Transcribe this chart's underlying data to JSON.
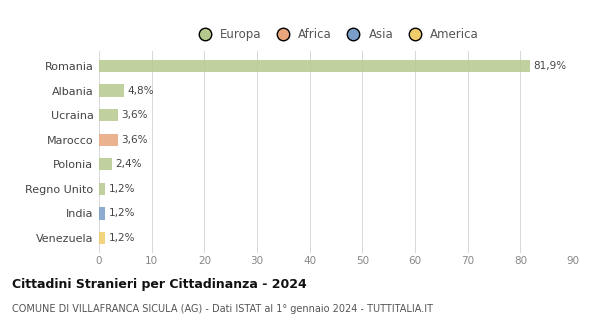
{
  "countries": [
    "Romania",
    "Albania",
    "Ucraina",
    "Marocco",
    "Polonia",
    "Regno Unito",
    "India",
    "Venezuela"
  ],
  "values": [
    81.9,
    4.8,
    3.6,
    3.6,
    2.4,
    1.2,
    1.2,
    1.2
  ],
  "labels": [
    "81,9%",
    "4,8%",
    "3,6%",
    "3,6%",
    "2,4%",
    "1,2%",
    "1,2%",
    "1,2%"
  ],
  "colors": [
    "#b5c98e",
    "#b5c98e",
    "#b5c98e",
    "#e8a57c",
    "#b5c98e",
    "#b5c98e",
    "#7a9ec8",
    "#f0cc6a"
  ],
  "legend_labels": [
    "Europa",
    "Africa",
    "Asia",
    "America"
  ],
  "legend_colors": [
    "#b5c98e",
    "#e8a57c",
    "#7a9ec8",
    "#f0cc6a"
  ],
  "title": "Cittadini Stranieri per Cittadinanza - 2024",
  "subtitle": "COMUNE DI VILLAFRANCA SICULA (AG) - Dati ISTAT al 1° gennaio 2024 - TUTTITALIA.IT",
  "xlim": [
    0,
    90
  ],
  "xticks": [
    0,
    10,
    20,
    30,
    40,
    50,
    60,
    70,
    80,
    90
  ],
  "background_color": "#ffffff",
  "grid_color": "#d8d8d8",
  "bar_height": 0.5
}
